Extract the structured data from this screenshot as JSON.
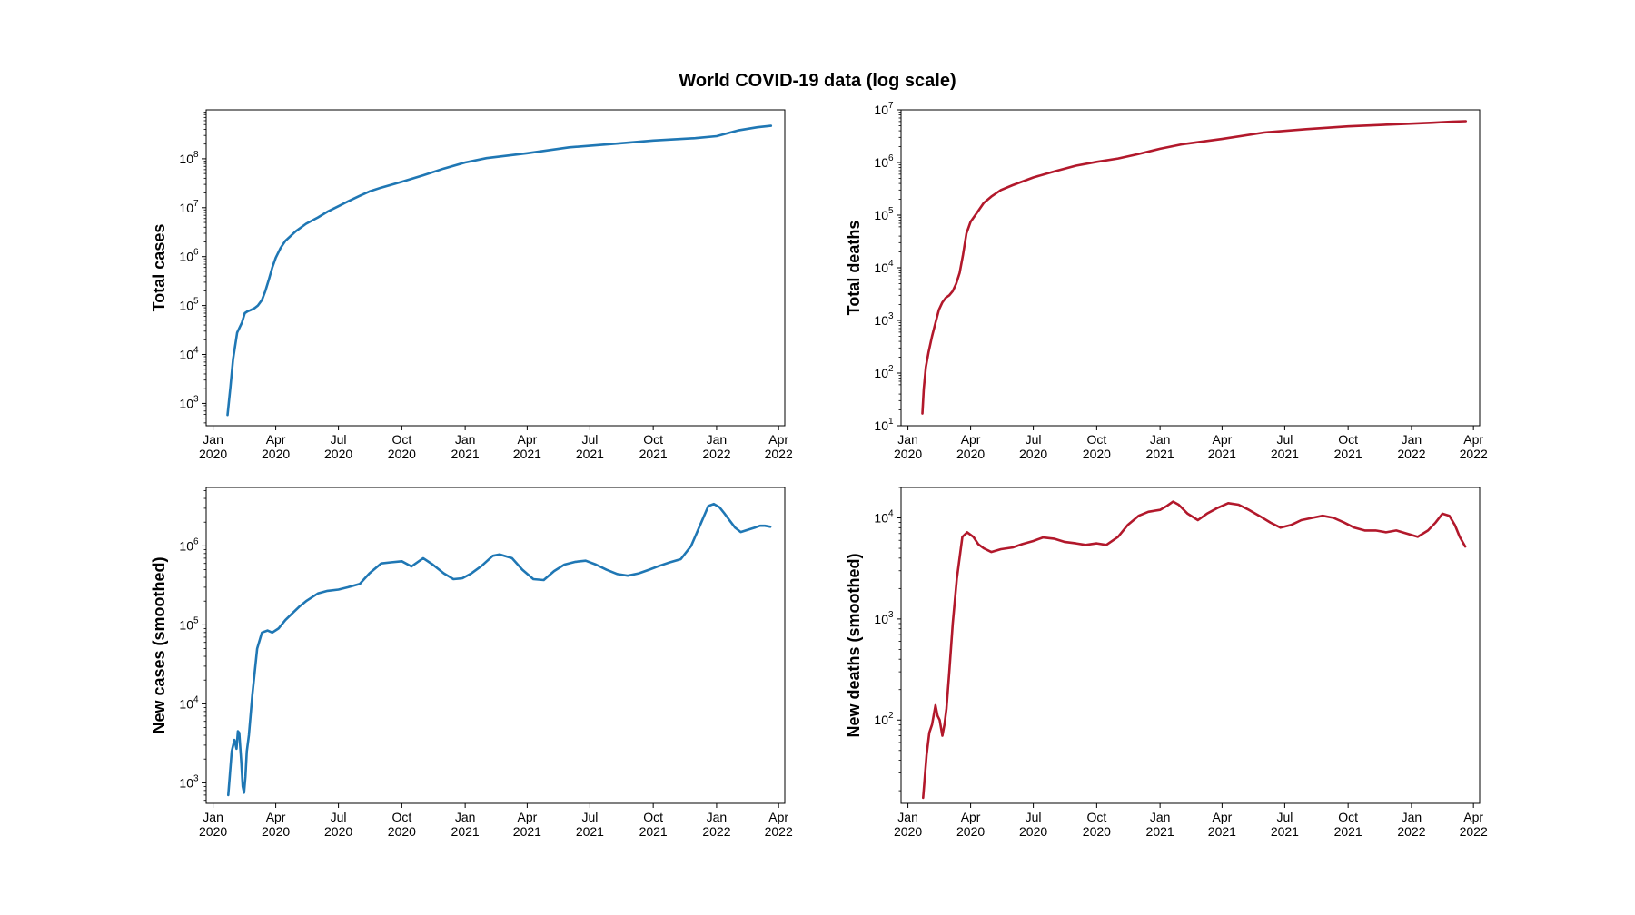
{
  "figure": {
    "title": "World COVID-19 data (log scale)"
  },
  "colors": {
    "cases": "#1f77b4",
    "deaths": "#b2182b"
  },
  "chart_data": [
    {
      "type": "line",
      "ylabel": "Total cases",
      "yscale": "log",
      "xlim": [
        "2019-12-22",
        "2022-04-10"
      ],
      "ylim": [
        350,
        1000000000
      ],
      "color": "#1f77b4",
      "x_ticks": [
        {
          "month": "Jan",
          "year": "2020",
          "date": "2020-01-01"
        },
        {
          "month": "Apr",
          "year": "2020",
          "date": "2020-04-01"
        },
        {
          "month": "Jul",
          "year": "2020",
          "date": "2020-07-01"
        },
        {
          "month": "Oct",
          "year": "2020",
          "date": "2020-10-01"
        },
        {
          "month": "Jan",
          "year": "2021",
          "date": "2021-01-01"
        },
        {
          "month": "Apr",
          "year": "2021",
          "date": "2021-04-01"
        },
        {
          "month": "Jul",
          "year": "2021",
          "date": "2021-07-01"
        },
        {
          "month": "Oct",
          "year": "2021",
          "date": "2021-10-01"
        },
        {
          "month": "Jan",
          "year": "2022",
          "date": "2022-01-01"
        },
        {
          "month": "Apr",
          "year": "2022",
          "date": "2022-04-01"
        }
      ],
      "y_ticks": [
        {
          "base": "10",
          "exp": "3",
          "value": 1000
        },
        {
          "base": "10",
          "exp": "4",
          "value": 10000
        },
        {
          "base": "10",
          "exp": "5",
          "value": 100000
        },
        {
          "base": "10",
          "exp": "6",
          "value": 1000000
        },
        {
          "base": "10",
          "exp": "7",
          "value": 10000000
        },
        {
          "base": "10",
          "exp": "8",
          "value": 100000000
        }
      ],
      "x": [
        "2020-01-22",
        "2020-01-26",
        "2020-01-30",
        "2020-02-05",
        "2020-02-12",
        "2020-02-16",
        "2020-02-20",
        "2020-02-24",
        "2020-03-01",
        "2020-03-06",
        "2020-03-12",
        "2020-03-17",
        "2020-03-22",
        "2020-03-27",
        "2020-04-01",
        "2020-04-08",
        "2020-04-15",
        "2020-04-30",
        "2020-05-15",
        "2020-06-01",
        "2020-06-15",
        "2020-07-01",
        "2020-07-15",
        "2020-08-01",
        "2020-08-15",
        "2020-09-01",
        "2020-10-01",
        "2020-11-01",
        "2020-12-01",
        "2021-01-01",
        "2021-02-01",
        "2021-04-01",
        "2021-06-01",
        "2021-08-01",
        "2021-10-01",
        "2021-12-01",
        "2022-01-01",
        "2022-02-01",
        "2022-03-01",
        "2022-03-21"
      ],
      "y": [
        580,
        2000,
        8000,
        28000,
        45000,
        70000,
        76000,
        80000,
        88000,
        100000,
        130000,
        200000,
        340000,
        600000,
        950000,
        1500000,
        2100000,
        3300000,
        4700000,
        6300000,
        8300000,
        10700000,
        13500000,
        17500000,
        21500000,
        25700000,
        34000000,
        46000000,
        63000000,
        84000000,
        103000000,
        130000000,
        171000000,
        200000000,
        236000000,
        264000000,
        290000000,
        380000000,
        440000000,
        472000000
      ]
    },
    {
      "type": "line",
      "ylabel": "Total deaths",
      "yscale": "log",
      "xlim": [
        "2019-12-22",
        "2022-04-10"
      ],
      "ylim": [
        10,
        10000000
      ],
      "color": "#b2182b",
      "x_ticks": [
        {
          "month": "Jan",
          "year": "2020",
          "date": "2020-01-01"
        },
        {
          "month": "Apr",
          "year": "2020",
          "date": "2020-04-01"
        },
        {
          "month": "Jul",
          "year": "2020",
          "date": "2020-07-01"
        },
        {
          "month": "Oct",
          "year": "2020",
          "date": "2020-10-01"
        },
        {
          "month": "Jan",
          "year": "2021",
          "date": "2021-01-01"
        },
        {
          "month": "Apr",
          "year": "2021",
          "date": "2021-04-01"
        },
        {
          "month": "Jul",
          "year": "2021",
          "date": "2021-07-01"
        },
        {
          "month": "Oct",
          "year": "2021",
          "date": "2021-10-01"
        },
        {
          "month": "Jan",
          "year": "2022",
          "date": "2022-01-01"
        },
        {
          "month": "Apr",
          "year": "2022",
          "date": "2022-04-01"
        }
      ],
      "y_ticks": [
        {
          "base": "10",
          "exp": "1",
          "value": 10
        },
        {
          "base": "10",
          "exp": "2",
          "value": 100
        },
        {
          "base": "10",
          "exp": "3",
          "value": 1000
        },
        {
          "base": "10",
          "exp": "4",
          "value": 10000
        },
        {
          "base": "10",
          "exp": "5",
          "value": 100000
        },
        {
          "base": "10",
          "exp": "6",
          "value": 1000000
        },
        {
          "base": "10",
          "exp": "7",
          "value": 10000000
        }
      ],
      "x": [
        "2020-01-22",
        "2020-01-24",
        "2020-01-27",
        "2020-01-31",
        "2020-02-05",
        "2020-02-10",
        "2020-02-15",
        "2020-02-20",
        "2020-02-25",
        "2020-03-01",
        "2020-03-06",
        "2020-03-11",
        "2020-03-16",
        "2020-03-21",
        "2020-03-26",
        "2020-04-01",
        "2020-04-10",
        "2020-04-20",
        "2020-05-01",
        "2020-05-15",
        "2020-06-01",
        "2020-07-01",
        "2020-08-01",
        "2020-09-01",
        "2020-10-01",
        "2020-11-01",
        "2020-12-01",
        "2021-01-01",
        "2021-02-01",
        "2021-04-01",
        "2021-06-01",
        "2021-08-01",
        "2021-10-01",
        "2021-12-01",
        "2022-01-01",
        "2022-02-01",
        "2022-03-01",
        "2022-03-21"
      ],
      "y": [
        17,
        50,
        130,
        250,
        500,
        900,
        1600,
        2200,
        2700,
        3000,
        3600,
        5000,
        8000,
        18000,
        45000,
        75000,
        110000,
        170000,
        225000,
        300000,
        370000,
        520000,
        680000,
        870000,
        1030000,
        1190000,
        1450000,
        1820000,
        2200000,
        2800000,
        3700000,
        4300000,
        4850000,
        5250000,
        5470000,
        5700000,
        5980000,
        6100000
      ]
    },
    {
      "type": "line",
      "ylabel": "New cases (smoothed)",
      "yscale": "log",
      "xlim": [
        "2019-12-22",
        "2022-04-10"
      ],
      "ylim": [
        550,
        5500000
      ],
      "color": "#1f77b4",
      "x_ticks": [
        {
          "month": "Jan",
          "year": "2020",
          "date": "2020-01-01"
        },
        {
          "month": "Apr",
          "year": "2020",
          "date": "2020-04-01"
        },
        {
          "month": "Jul",
          "year": "2020",
          "date": "2020-07-01"
        },
        {
          "month": "Oct",
          "year": "2020",
          "date": "2020-10-01"
        },
        {
          "month": "Jan",
          "year": "2021",
          "date": "2021-01-01"
        },
        {
          "month": "Apr",
          "year": "2021",
          "date": "2021-04-01"
        },
        {
          "month": "Jul",
          "year": "2021",
          "date": "2021-07-01"
        },
        {
          "month": "Oct",
          "year": "2021",
          "date": "2021-10-01"
        },
        {
          "month": "Jan",
          "year": "2022",
          "date": "2022-01-01"
        },
        {
          "month": "Apr",
          "year": "2022",
          "date": "2022-04-01"
        }
      ],
      "y_ticks": [
        {
          "base": "10",
          "exp": "3",
          "value": 1000
        },
        {
          "base": "10",
          "exp": "4",
          "value": 10000
        },
        {
          "base": "10",
          "exp": "5",
          "value": 100000
        },
        {
          "base": "10",
          "exp": "6",
          "value": 1000000
        }
      ],
      "x": [
        "2020-01-23",
        "2020-01-28",
        "2020-02-01",
        "2020-02-04",
        "2020-02-06",
        "2020-02-08",
        "2020-02-11",
        "2020-02-13",
        "2020-02-15",
        "2020-02-17",
        "2020-02-19",
        "2020-02-22",
        "2020-02-27",
        "2020-03-05",
        "2020-03-12",
        "2020-03-20",
        "2020-03-27",
        "2020-04-05",
        "2020-04-15",
        "2020-04-25",
        "2020-05-05",
        "2020-05-15",
        "2020-06-01",
        "2020-06-15",
        "2020-07-01",
        "2020-07-15",
        "2020-08-01",
        "2020-08-15",
        "2020-09-01",
        "2020-09-15",
        "2020-10-01",
        "2020-10-15",
        "2020-11-01",
        "2020-11-15",
        "2020-12-01",
        "2020-12-15",
        "2020-12-28",
        "2021-01-10",
        "2021-01-25",
        "2021-02-10",
        "2021-02-20",
        "2021-03-10",
        "2021-03-25",
        "2021-04-10",
        "2021-04-25",
        "2021-05-10",
        "2021-05-25",
        "2021-06-10",
        "2021-06-25",
        "2021-07-10",
        "2021-07-25",
        "2021-08-10",
        "2021-08-25",
        "2021-09-10",
        "2021-09-25",
        "2021-10-10",
        "2021-10-25",
        "2021-11-10",
        "2021-11-25",
        "2021-12-10",
        "2021-12-20",
        "2021-12-28",
        "2022-01-05",
        "2022-01-12",
        "2022-01-20",
        "2022-01-28",
        "2022-02-05",
        "2022-02-15",
        "2022-02-25",
        "2022-03-05",
        "2022-03-12",
        "2022-03-20"
      ],
      "y": [
        700,
        2500,
        3500,
        2700,
        4500,
        4300,
        1800,
        900,
        750,
        1200,
        2500,
        4000,
        13000,
        50000,
        80000,
        85000,
        80000,
        90000,
        115000,
        140000,
        170000,
        200000,
        250000,
        270000,
        280000,
        300000,
        330000,
        450000,
        600000,
        620000,
        640000,
        550000,
        700000,
        580000,
        450000,
        380000,
        390000,
        450000,
        560000,
        750000,
        780000,
        700000,
        500000,
        380000,
        370000,
        480000,
        580000,
        630000,
        650000,
        580000,
        500000,
        440000,
        420000,
        450000,
        500000,
        560000,
        620000,
        680000,
        1000000,
        2000000,
        3200000,
        3400000,
        3100000,
        2600000,
        2100000,
        1700000,
        1500000,
        1600000,
        1700000,
        1800000,
        1800000,
        1750000
      ]
    },
    {
      "type": "line",
      "ylabel": "New deaths (smoothed)",
      "yscale": "log",
      "xlim": [
        "2019-12-22",
        "2022-04-10"
      ],
      "ylim": [
        15,
        20000
      ],
      "color": "#b2182b",
      "x_ticks": [
        {
          "month": "Jan",
          "year": "2020",
          "date": "2020-01-01"
        },
        {
          "month": "Apr",
          "year": "2020",
          "date": "2020-04-01"
        },
        {
          "month": "Jul",
          "year": "2020",
          "date": "2020-07-01"
        },
        {
          "month": "Oct",
          "year": "2020",
          "date": "2020-10-01"
        },
        {
          "month": "Jan",
          "year": "2021",
          "date": "2021-01-01"
        },
        {
          "month": "Apr",
          "year": "2021",
          "date": "2021-04-01"
        },
        {
          "month": "Jul",
          "year": "2021",
          "date": "2021-07-01"
        },
        {
          "month": "Oct",
          "year": "2021",
          "date": "2021-10-01"
        },
        {
          "month": "Jan",
          "year": "2022",
          "date": "2022-01-01"
        },
        {
          "month": "Apr",
          "year": "2022",
          "date": "2022-04-01"
        }
      ],
      "y_ticks": [
        {
          "base": "10",
          "exp": "2",
          "value": 100
        },
        {
          "base": "10",
          "exp": "3",
          "value": 1000
        },
        {
          "base": "10",
          "exp": "4",
          "value": 10000
        }
      ],
      "x": [
        "2020-01-23",
        "2020-01-28",
        "2020-02-01",
        "2020-02-05",
        "2020-02-10",
        "2020-02-13",
        "2020-02-16",
        "2020-02-20",
        "2020-02-23",
        "2020-02-26",
        "2020-03-01",
        "2020-03-06",
        "2020-03-12",
        "2020-03-20",
        "2020-03-27",
        "2020-04-05",
        "2020-04-12",
        "2020-04-20",
        "2020-05-01",
        "2020-05-15",
        "2020-06-01",
        "2020-06-15",
        "2020-07-01",
        "2020-07-15",
        "2020-08-01",
        "2020-08-15",
        "2020-09-01",
        "2020-09-15",
        "2020-10-01",
        "2020-10-15",
        "2020-11-01",
        "2020-11-15",
        "2020-12-01",
        "2020-12-15",
        "2021-01-01",
        "2021-01-10",
        "2021-01-20",
        "2021-01-28",
        "2021-02-10",
        "2021-02-25",
        "2021-03-10",
        "2021-03-25",
        "2021-04-10",
        "2021-04-25",
        "2021-05-10",
        "2021-05-25",
        "2021-06-10",
        "2021-06-25",
        "2021-07-10",
        "2021-07-25",
        "2021-08-10",
        "2021-08-25",
        "2021-09-10",
        "2021-09-25",
        "2021-10-10",
        "2021-10-25",
        "2021-11-10",
        "2021-11-25",
        "2021-12-10",
        "2021-12-25",
        "2022-01-10",
        "2022-01-25",
        "2022-02-05",
        "2022-02-15",
        "2022-02-25",
        "2022-03-05",
        "2022-03-12",
        "2022-03-20"
      ],
      "y": [
        17,
        45,
        75,
        90,
        140,
        110,
        100,
        70,
        90,
        130,
        300,
        900,
        2500,
        6500,
        7200,
        6500,
        5500,
        5000,
        4600,
        4900,
        5100,
        5500,
        5900,
        6400,
        6200,
        5800,
        5600,
        5400,
        5600,
        5400,
        6500,
        8500,
        10500,
        11500,
        12000,
        13000,
        14500,
        13500,
        11000,
        9500,
        11000,
        12500,
        14000,
        13500,
        12000,
        10500,
        9000,
        8000,
        8500,
        9500,
        10000,
        10500,
        10000,
        9000,
        8000,
        7500,
        7500,
        7200,
        7500,
        7000,
        6500,
        7500,
        9000,
        11000,
        10500,
        8500,
        6500,
        5200
      ]
    }
  ]
}
